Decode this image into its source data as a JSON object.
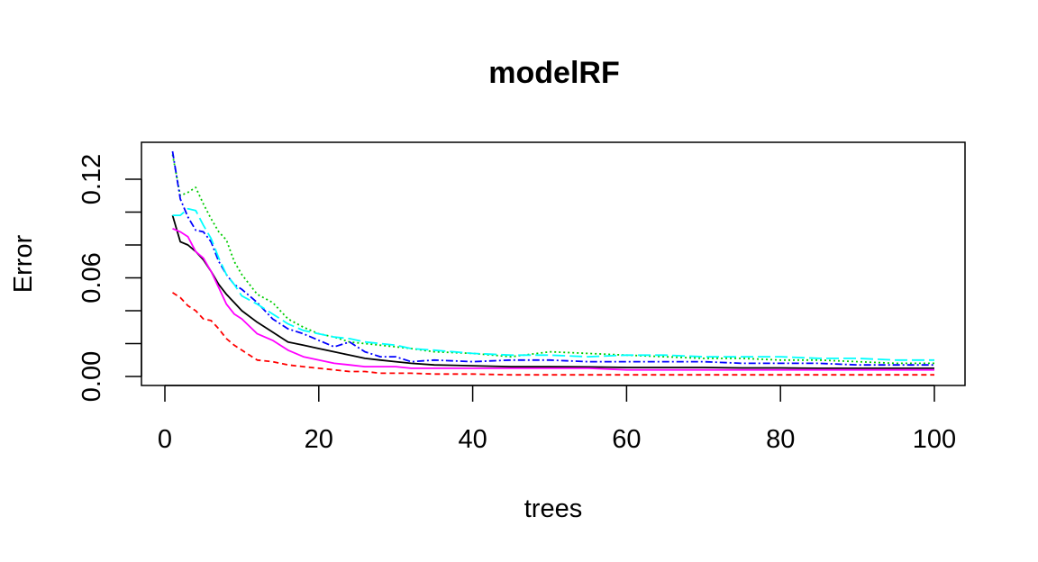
{
  "chart_data": {
    "type": "line",
    "title": "modelRF",
    "xlabel": "trees",
    "ylabel": "Error",
    "xlim": [
      0,
      100
    ],
    "ylim": [
      0,
      0.135
    ],
    "x_ticks": [
      0,
      20,
      40,
      60,
      80,
      100
    ],
    "x_tick_labels": [
      "0",
      "20",
      "40",
      "60",
      "80",
      "100"
    ],
    "y_ticks": [
      0,
      0.02,
      0.04,
      0.06,
      0.08,
      0.1,
      0.12
    ],
    "y_tick_labels": [
      "0.00",
      "",
      "",
      "0.06",
      "",
      "",
      "0.12"
    ],
    "grid": false,
    "x": [
      1,
      2,
      3,
      4,
      5,
      6,
      7,
      8,
      9,
      10,
      12,
      14,
      16,
      18,
      20,
      22,
      24,
      26,
      28,
      30,
      32,
      35,
      40,
      45,
      50,
      55,
      60,
      65,
      70,
      75,
      80,
      85,
      90,
      95,
      100
    ],
    "series": [
      {
        "color": "#000000",
        "dash": "solid",
        "values": [
          0.098,
          0.082,
          0.08,
          0.076,
          0.071,
          0.064,
          0.056,
          0.05,
          0.045,
          0.04,
          0.033,
          0.027,
          0.021,
          0.019,
          0.017,
          0.015,
          0.013,
          0.011,
          0.01,
          0.009,
          0.008,
          0.007,
          0.0065,
          0.006,
          0.006,
          0.0058,
          0.0055,
          0.0055,
          0.0055,
          0.0052,
          0.0052,
          0.005,
          0.005,
          0.005,
          0.005
        ]
      },
      {
        "color": "#ff0000",
        "dash": "6,4",
        "values": [
          0.051,
          0.048,
          0.043,
          0.04,
          0.035,
          0.034,
          0.029,
          0.023,
          0.019,
          0.016,
          0.01,
          0.009,
          0.007,
          0.006,
          0.005,
          0.004,
          0.003,
          0.003,
          0.002,
          0.002,
          0.002,
          0.0015,
          0.0015,
          0.001,
          0.001,
          0.001,
          0.001,
          0.001,
          0.001,
          0.001,
          0.001,
          0.001,
          0.001,
          0.001,
          0.001
        ]
      },
      {
        "color": "#00cd00",
        "dash": "2,3",
        "values": [
          0.135,
          0.11,
          0.112,
          0.115,
          0.105,
          0.096,
          0.088,
          0.083,
          0.07,
          0.062,
          0.05,
          0.045,
          0.035,
          0.03,
          0.026,
          0.024,
          0.021,
          0.02,
          0.019,
          0.018,
          0.017,
          0.015,
          0.014,
          0.012,
          0.015,
          0.014,
          0.013,
          0.012,
          0.011,
          0.011,
          0.01,
          0.01,
          0.009,
          0.008,
          0.008
        ]
      },
      {
        "color": "#0000ff",
        "dash": "8,3,2,3",
        "values": [
          0.137,
          0.108,
          0.097,
          0.089,
          0.088,
          0.082,
          0.07,
          0.062,
          0.056,
          0.053,
          0.045,
          0.035,
          0.029,
          0.026,
          0.022,
          0.018,
          0.021,
          0.015,
          0.012,
          0.012,
          0.009,
          0.01,
          0.009,
          0.01,
          0.01,
          0.009,
          0.009,
          0.009,
          0.009,
          0.008,
          0.008,
          0.008,
          0.007,
          0.007,
          0.007
        ]
      },
      {
        "color": "#00ffff",
        "dash": "14,5",
        "values": [
          0.098,
          0.098,
          0.102,
          0.101,
          0.092,
          0.084,
          0.072,
          0.062,
          0.056,
          0.049,
          0.044,
          0.038,
          0.032,
          0.028,
          0.026,
          0.024,
          0.023,
          0.021,
          0.02,
          0.019,
          0.017,
          0.016,
          0.014,
          0.013,
          0.013,
          0.012,
          0.013,
          0.013,
          0.012,
          0.012,
          0.012,
          0.011,
          0.011,
          0.01,
          0.01
        ]
      },
      {
        "color": "#ff00ff",
        "dash": "solid",
        "values": [
          0.09,
          0.088,
          0.085,
          0.076,
          0.072,
          0.064,
          0.054,
          0.044,
          0.038,
          0.035,
          0.026,
          0.022,
          0.016,
          0.012,
          0.01,
          0.008,
          0.007,
          0.006,
          0.006,
          0.006,
          0.005,
          0.005,
          0.005,
          0.005,
          0.005,
          0.005,
          0.004,
          0.004,
          0.004,
          0.004,
          0.004,
          0.004,
          0.004,
          0.004,
          0.004
        ]
      }
    ]
  }
}
